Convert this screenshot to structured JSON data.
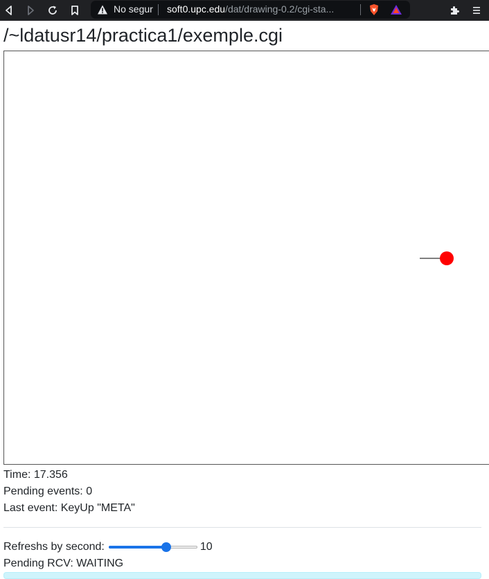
{
  "browser": {
    "nav": {
      "back_icon": "back-icon",
      "forward_icon": "forward-icon",
      "reload_icon": "reload-icon",
      "bookmark_icon": "bookmark-icon"
    },
    "security_label": "No segur",
    "url_host": "soft0.upc.edu",
    "url_path": "/dat/drawing-0.2/cgi-sta...",
    "icons": [
      "warning-icon",
      "brave-shield-icon",
      "brave-rewards-icon",
      "extensions-icon",
      "menu-icon"
    ],
    "colors": {
      "toolbar": "#202124",
      "urlbar": "#0f1114"
    }
  },
  "page": {
    "title": "/~ldatusr14/practica1/exemple.cgi"
  },
  "canvas": {
    "ball_color": "#ff0000",
    "line_color": "#333333"
  },
  "status": {
    "time": "Time: 17.356",
    "pending_events": "Pending events: 0",
    "last_event": "Last event: KeyUp \"META\""
  },
  "controls": {
    "refresh_label": "Refreshs by second:",
    "refresh_value": "10",
    "refresh_fraction": 0.65,
    "pending_rcv": "Pending RCV: WAITING",
    "accent": "#1a73e8"
  }
}
